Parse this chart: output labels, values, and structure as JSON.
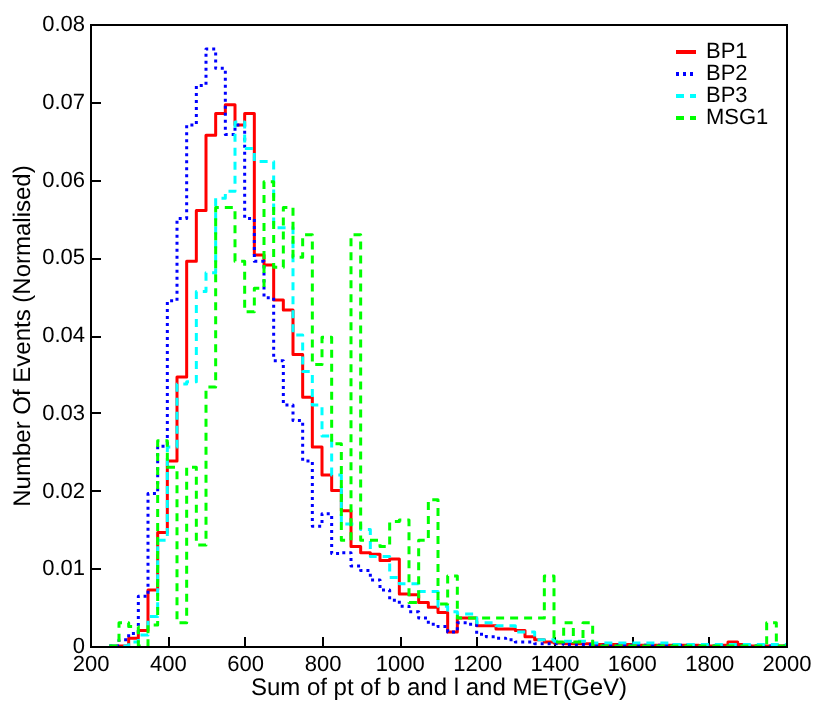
{
  "chart_data": {
    "type": "histogram",
    "xlabel": "Sum of pt of b and l and MET(GeV)",
    "ylabel": "Number Of Events (Normalised)",
    "bins": [
      250,
      275,
      300,
      325,
      350,
      375,
      400,
      425,
      450,
      475,
      500,
      525,
      550,
      575,
      600,
      625,
      650,
      675,
      700,
      725,
      750,
      775,
      800,
      825,
      850,
      875,
      900,
      925,
      950,
      975,
      1000,
      1025,
      1050,
      1075,
      1100,
      1125,
      1150,
      1175,
      1200,
      1225,
      1250,
      1275,
      1300,
      1325,
      1350,
      1375,
      1400,
      1425,
      1450,
      1475,
      1500,
      1525,
      1550,
      1575,
      1600,
      1625,
      1650,
      1675,
      1700,
      1725,
      1750,
      1775,
      1800,
      1825,
      1850,
      1875,
      1900,
      1925,
      1950,
      1975,
      2000
    ],
    "series": [
      {
        "name": "BP1",
        "color": "#ff0000",
        "line_style": "solid",
        "values": [
          0,
          0,
          0.001,
          0.002,
          0.0072,
          0.0146,
          0.0238,
          0.0346,
          0.0495,
          0.056,
          0.0657,
          0.0685,
          0.0696,
          0.067,
          0.0685,
          0.0503,
          0.049,
          0.0445,
          0.0432,
          0.0375,
          0.032,
          0.0256,
          0.022,
          0.02,
          0.0174,
          0.0128,
          0.012,
          0.0118,
          0.011,
          0.0112,
          0.0067,
          0.0066,
          0.0056,
          0.005,
          0.0043,
          0.0018,
          0.0036,
          0.0036,
          0.0026,
          0.0026,
          0.0022,
          0.0022,
          0.002,
          0.0012,
          0.0008,
          0.0005,
          0.0004,
          0.0003,
          0.0003,
          0.0003,
          0.0002,
          0.0002,
          0.0002,
          0.0002,
          0.0001,
          0.0001,
          0.0001,
          0.0001,
          0.0001,
          0.0001,
          0.0001,
          0,
          0,
          0.0001,
          0.0005,
          0.0002,
          0,
          0,
          0,
          0
        ]
      },
      {
        "name": "BP2",
        "color": "#0000ff",
        "line_style": "dotted",
        "values": [
          0,
          0.0008,
          0.0016,
          0.0064,
          0.0196,
          0.0257,
          0.0444,
          0.055,
          0.067,
          0.0721,
          0.0768,
          0.0743,
          0.0658,
          0.067,
          0.055,
          0.0495,
          0.0448,
          0.0367,
          0.031,
          0.029,
          0.0238,
          0.0154,
          0.017,
          0.0119,
          0.012,
          0.0103,
          0.0097,
          0.0085,
          0.0072,
          0.0059,
          0.0051,
          0.0044,
          0.0036,
          0.0028,
          0.0025,
          0.0018,
          0.003,
          0.0028,
          0.0015,
          0.0012,
          0.001,
          0.0008,
          0.0005,
          0.0005,
          0.0003,
          0.0003,
          0.0003,
          0.0002,
          0.0002,
          0.0002,
          0.0001,
          0.0001,
          0.0001,
          0.0001,
          0.0001,
          0.0001,
          0.0001,
          0.0001,
          0.0001,
          0.0001,
          0,
          0,
          0,
          0,
          0,
          0,
          0,
          0,
          0,
          0
        ]
      },
      {
        "name": "BP3",
        "color": "#00ffff",
        "line_style": "dashed",
        "values": [
          0,
          0,
          0.0005,
          0.0014,
          0.0038,
          0.0136,
          0.0256,
          0.0337,
          0.034,
          0.0456,
          0.048,
          0.0576,
          0.0585,
          0.0674,
          0.064,
          0.0623,
          0.0623,
          0.0538,
          0.0538,
          0.04,
          0.0353,
          0.031,
          0.027,
          0.022,
          0.0157,
          0.0157,
          0.015,
          0.0115,
          0.0115,
          0.0088,
          0.008,
          0.008,
          0.007,
          0.007,
          0.0051,
          0.0044,
          0.0041,
          0.0041,
          0.003,
          0.003,
          0.0026,
          0.0026,
          0.0018,
          0.0018,
          0.0008,
          0.0008,
          0.0006,
          0.0006,
          0.0006,
          0.0006,
          0.0004,
          0.0004,
          0.0004,
          0.0004,
          0.0004,
          0.0004,
          0.0004,
          0.0004,
          0.0002,
          0.0002,
          0.0002,
          0.0002,
          0.0002,
          0.0002,
          0.0002,
          0.0002,
          0.0002,
          0.0002,
          0.0002,
          0.0002
        ]
      },
      {
        "name": "MSG1",
        "color": "#00ff00",
        "line_style": "dashed",
        "values": [
          0,
          0.003,
          0.0025,
          0,
          0.0027,
          0.0264,
          0.023,
          0.003,
          0.023,
          0.013,
          0.0333,
          0.0564,
          0.0564,
          0.0495,
          0.043,
          0.046,
          0.0597,
          0.0487,
          0.0564,
          0.05,
          0.0529,
          0.0362,
          0.0397,
          0.026,
          0.0136,
          0.0529,
          0.0136,
          0.0136,
          0.0128,
          0.016,
          0.0162,
          0.0056,
          0.0136,
          0.0188,
          0.0054,
          0.009,
          0.0036,
          0.0036,
          0.0036,
          0.0036,
          0.0036,
          0.0036,
          0.0036,
          0.0036,
          0.0036,
          0.009,
          0.0005,
          0.003,
          0.0005,
          0.003,
          0,
          0,
          0,
          0,
          0,
          0,
          0,
          0,
          0,
          0,
          0,
          0,
          0,
          0,
          0,
          0,
          0,
          0,
          0.003,
          0
        ]
      }
    ],
    "xlim": [
      200,
      2000
    ],
    "xticks": [
      200,
      400,
      600,
      800,
      1000,
      1200,
      1400,
      1600,
      1800,
      2000
    ],
    "ylim": [
      0,
      0.08
    ],
    "yticks": [
      0,
      0.01,
      0.02,
      0.03,
      0.04,
      0.05,
      0.06,
      0.07,
      0.08
    ],
    "grid": false,
    "legend": "top right"
  }
}
